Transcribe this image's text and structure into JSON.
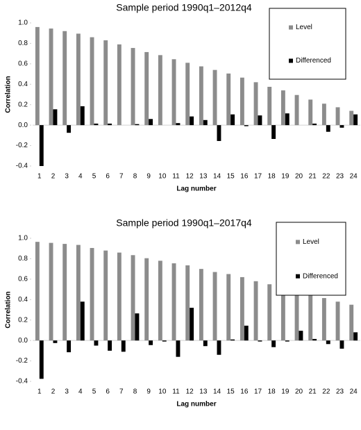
{
  "chart_data": [
    {
      "type": "bar",
      "title": "Sample period 1990q1–2012q4",
      "xlabel": "Lag number",
      "ylabel": "Correlation",
      "categories": [
        "1",
        "2",
        "3",
        "4",
        "5",
        "6",
        "7",
        "8",
        "9",
        "10",
        "11",
        "12",
        "13",
        "14",
        "15",
        "16",
        "17",
        "18",
        "19",
        "20",
        "21",
        "22",
        "23",
        "24"
      ],
      "series": [
        {
          "name": "Level",
          "color": "#8c8c8c",
          "values": [
            0.96,
            0.945,
            0.92,
            0.895,
            0.86,
            0.83,
            0.79,
            0.755,
            0.715,
            0.685,
            0.645,
            0.61,
            0.575,
            0.54,
            0.505,
            0.465,
            0.42,
            0.375,
            0.34,
            0.295,
            0.25,
            0.21,
            0.175,
            0.14
          ]
        },
        {
          "name": "Differenced",
          "color": "#000000",
          "values": [
            -0.4,
            0.155,
            -0.075,
            0.185,
            0.015,
            0.015,
            0,
            0.01,
            0.06,
            0,
            0.02,
            0.085,
            0.05,
            -0.155,
            0.105,
            -0.01,
            0.095,
            -0.135,
            0.115,
            0,
            0.015,
            -0.065,
            -0.025,
            0.105
          ]
        }
      ],
      "ylim": [
        -0.4,
        1.0
      ],
      "yticks": [
        {
          "value": 1.0,
          "label": "1.0"
        },
        0.8,
        0.6,
        0.4,
        0.2,
        {
          "value": 0,
          "label": "0.0"
        },
        -0.2,
        -0.4
      ],
      "legend": "upper right"
    },
    {
      "type": "bar",
      "title": "Sample period 1990q1–2017q4",
      "xlabel": "Lag number",
      "ylabel": "Correlation",
      "categories": [
        "1",
        "2",
        "3",
        "4",
        "5",
        "6",
        "7",
        "8",
        "9",
        "10",
        "11",
        "12",
        "13",
        "14",
        "15",
        "16",
        "17",
        "18",
        "19",
        "20",
        "21",
        "22",
        "23",
        "24"
      ],
      "series": [
        {
          "name": "Level",
          "color": "#8c8c8c",
          "values": [
            0.965,
            0.955,
            0.945,
            0.935,
            0.905,
            0.88,
            0.86,
            0.835,
            0.805,
            0.78,
            0.755,
            0.735,
            0.7,
            0.67,
            0.65,
            0.62,
            0.58,
            0.55,
            0.52,
            0.485,
            0.45,
            0.415,
            0.38,
            0.35
          ]
        },
        {
          "name": "Differenced",
          "color": "#000000",
          "values": [
            -0.375,
            -0.025,
            -0.115,
            0.38,
            -0.05,
            -0.1,
            -0.11,
            0.265,
            -0.045,
            -0.01,
            -0.16,
            0.32,
            -0.055,
            -0.14,
            0.01,
            0.145,
            -0.01,
            -0.065,
            -0.01,
            0.095,
            0.015,
            -0.035,
            -0.08,
            0.08
          ]
        }
      ],
      "ylim": [
        -0.4,
        1.0
      ],
      "yticks": [
        {
          "value": 1.0,
          "label": "1.0"
        },
        0.8,
        0.6,
        0.4,
        0.2,
        {
          "value": 0,
          "label": "0.0"
        },
        -0.2,
        -0.4
      ],
      "legend": "upper right"
    }
  ]
}
